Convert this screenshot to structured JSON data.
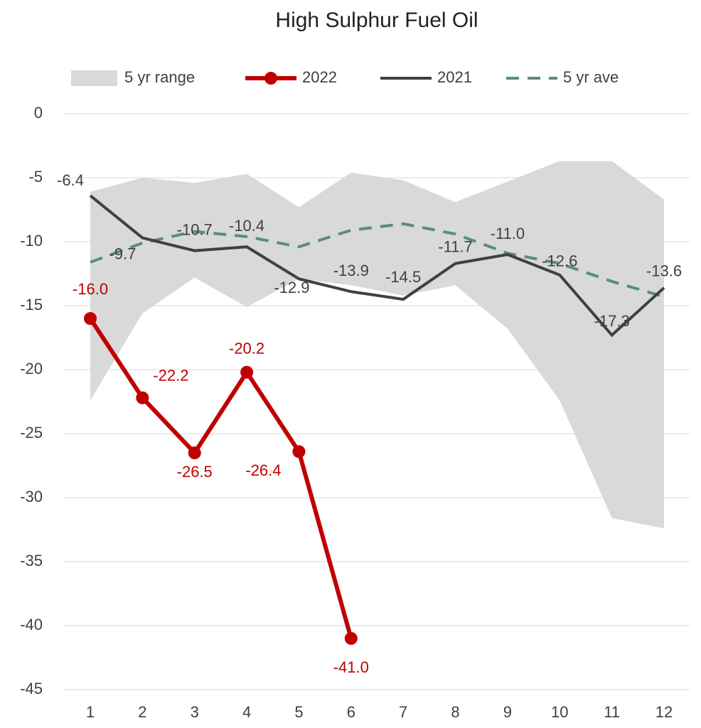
{
  "chart_data": {
    "type": "line",
    "title": "High Sulphur Fuel Oil",
    "categories": [
      "1",
      "2",
      "3",
      "4",
      "5",
      "6",
      "7",
      "8",
      "9",
      "10",
      "11",
      "12"
    ],
    "ylim": [
      -45,
      0
    ],
    "yticks": [
      0,
      -5,
      -10,
      -15,
      -20,
      -25,
      -30,
      -35,
      -40,
      -45
    ],
    "grid": true,
    "legend": "top",
    "range": {
      "name": "5 yr range",
      "color": "#d9d9d9",
      "upper": [
        -6.1,
        -5.0,
        -5.4,
        -4.7,
        -7.3,
        -4.6,
        -5.2,
        -6.9,
        -5.3,
        -3.7,
        -3.7,
        -6.7
      ],
      "lower": [
        -22.4,
        -15.6,
        -12.8,
        -15.1,
        -12.9,
        -13.4,
        -14.2,
        -13.4,
        -16.8,
        -22.4,
        -31.6,
        -32.4
      ]
    },
    "series": [
      {
        "name": "2022",
        "color": "#c00000",
        "values": [
          -16.0,
          -22.2,
          -26.5,
          -20.2,
          -26.4,
          -41.0,
          null,
          null,
          null,
          null,
          null,
          null
        ],
        "value_labels": [
          "-16.0",
          "-22.2",
          "-26.5",
          "-20.2",
          "-26.4",
          "-41.0",
          null,
          null,
          null,
          null,
          null,
          null
        ]
      },
      {
        "name": "2021",
        "color": "#404040",
        "values": [
          -6.4,
          -9.7,
          -10.7,
          -10.4,
          -12.9,
          -13.9,
          -14.5,
          -11.7,
          -11.0,
          -12.6,
          -17.3,
          -13.6
        ],
        "value_labels": [
          "-6.4",
          "-9.7",
          "-10.7",
          "-10.4",
          "-12.9",
          "-13.9",
          "-14.5",
          "-11.7",
          "-11.0",
          "-12.6",
          "-17.3",
          "-13.6"
        ]
      },
      {
        "name": "5 yr ave",
        "color": "#5b8a8a",
        "dashed": true,
        "values": [
          -11.6,
          -10.1,
          -9.2,
          -9.6,
          -10.4,
          -9.1,
          -8.6,
          -9.4,
          -10.9,
          -11.7,
          -13.1,
          -14.3
        ]
      }
    ]
  }
}
